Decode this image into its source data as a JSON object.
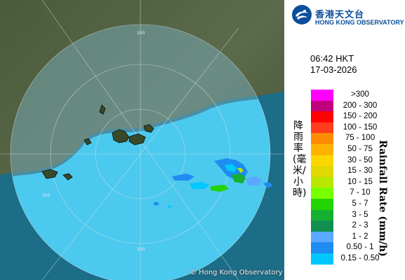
{
  "map": {
    "copyright": "© Hong Kong Observatory",
    "range_labels": [
      "200",
      "200",
      "200"
    ]
  },
  "header": {
    "logo_cn": "香港天文台",
    "logo_en": "HONG KONG OBSERVATORY"
  },
  "timestamp": {
    "time": "06:42 HKT",
    "date": "17-03-2026"
  },
  "legend": {
    "unit_en": "Rainfall Rate (mm/h)",
    "unit_cn": "降雨率(毫米/小時)",
    "items": [
      {
        "label": ">300",
        "color": "#ff00ff"
      },
      {
        "label": "200 - 300",
        "color": "#c0007a"
      },
      {
        "label": "150 - 200",
        "color": "#ff0000"
      },
      {
        "label": "100 - 150",
        "color": "#ff3c1e"
      },
      {
        "label": "75 - 100",
        "color": "#ff8c00"
      },
      {
        "label": "50 - 75",
        "color": "#ffb300"
      },
      {
        "label": "30 - 50",
        "color": "#ffd700"
      },
      {
        "label": "15 - 30",
        "color": "#e0d800"
      },
      {
        "label": "10 - 15",
        "color": "#b8e800"
      },
      {
        "label": "7 - 10",
        "color": "#78ff00"
      },
      {
        "label": "5 - 7",
        "color": "#22d400"
      },
      {
        "label": "3 - 5",
        "color": "#16b030"
      },
      {
        "label": "2 - 3",
        "color": "#129050"
      },
      {
        "label": "1 - 2",
        "color": "#5aa8ff"
      },
      {
        "label": "0.50 - 1",
        "color": "#1e8cf0"
      },
      {
        "label": "0.15 - 0.50",
        "color": "#00c8ff"
      }
    ]
  }
}
